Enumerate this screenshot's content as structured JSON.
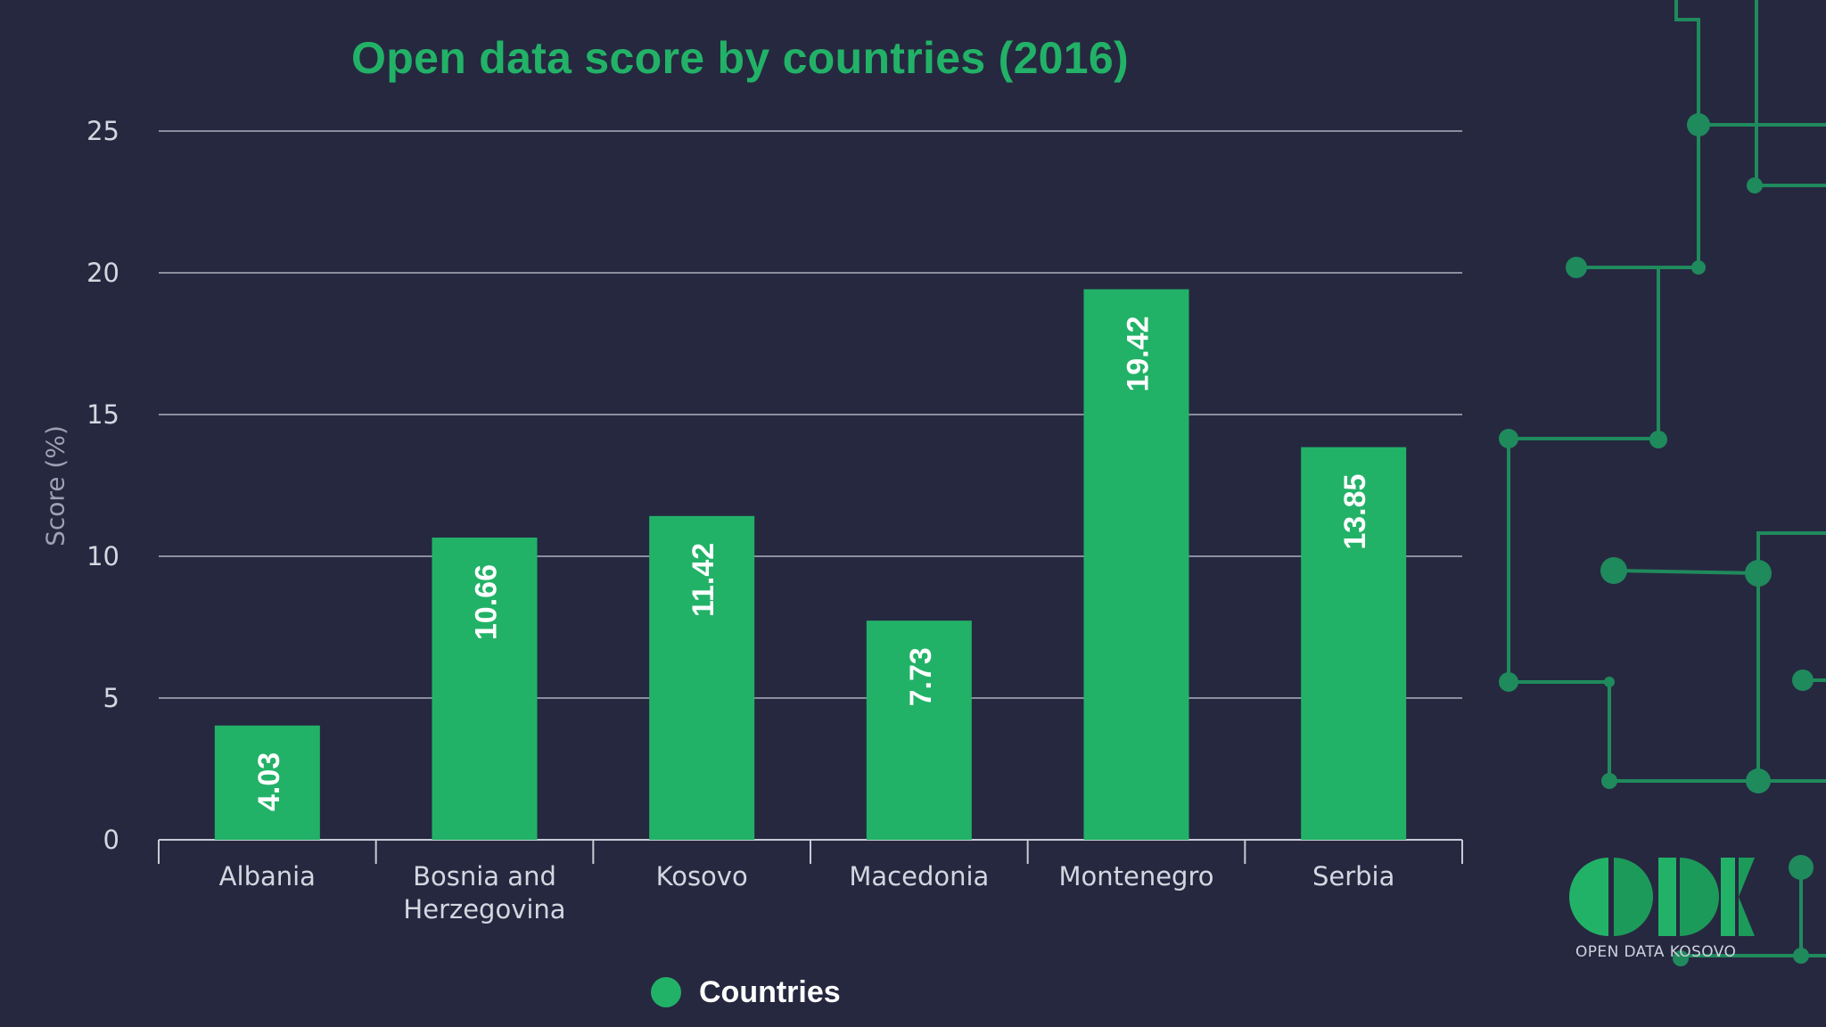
{
  "chart_data": {
    "type": "bar",
    "title": "Open data score by countries (2016)",
    "xlabel": "",
    "ylabel": "Score (%)",
    "ylim": [
      0,
      25
    ],
    "yticks": [
      0,
      5,
      10,
      15,
      20,
      25
    ],
    "grid": true,
    "categories": [
      "Albania",
      "Bosnia and Herzegovina",
      "Kosovo",
      "Macedonia",
      "Montenegro",
      "Serbia"
    ],
    "series": [
      {
        "name": "Countries",
        "values": [
          4.03,
          10.66,
          11.42,
          7.73,
          19.42,
          13.85
        ],
        "value_labels": [
          "4.03",
          "10.66",
          "11.42",
          "7.73",
          "19.42",
          "13.85"
        ]
      }
    ],
    "legend": "bottom-center"
  },
  "colors": {
    "background": "#262840",
    "bar": "#22b267",
    "title": "#22b267",
    "axis_text": "#d4d6e0",
    "gridline": "#c8cad6",
    "circuit": "#1f8a5c"
  },
  "logo": {
    "caption": "OPEN DATA KOSOVO"
  }
}
